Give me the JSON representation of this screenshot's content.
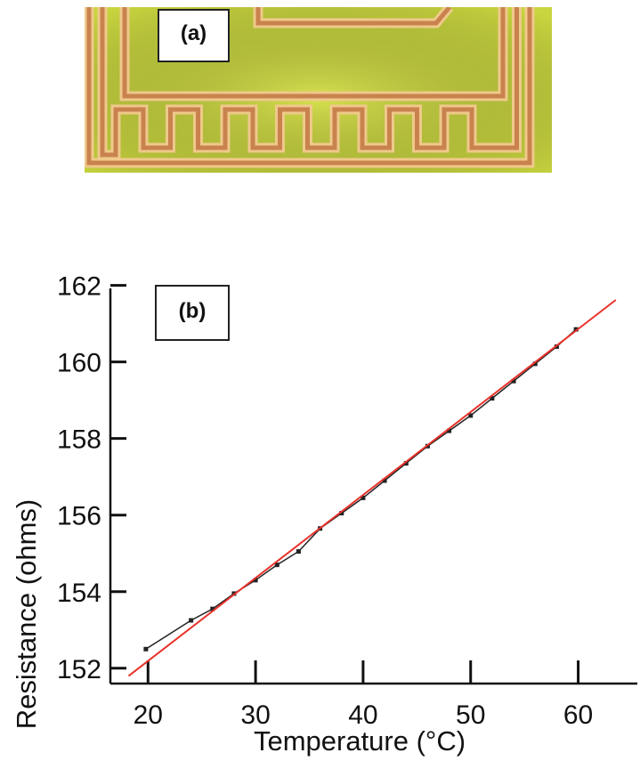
{
  "panel_a": {
    "label": "(a)",
    "photo": {
      "background_color": "#c9d63f",
      "trace_color": "#c9824e",
      "trace_highlight_color": "#efc98a"
    }
  },
  "panel_b": {
    "label": "(b)"
  },
  "chart_data": {
    "type": "line",
    "title": "",
    "xlabel": "Temperature (°C)",
    "ylabel": "Resistance (ohms)",
    "xlim": [
      16.5,
      65.5
    ],
    "ylim": [
      151.6,
      162.2
    ],
    "x_ticks": [
      20,
      30,
      40,
      50,
      60
    ],
    "y_ticks": [
      152,
      154,
      156,
      158,
      160,
      162
    ],
    "grid": false,
    "series": [
      {
        "role": "measured",
        "color": "#222222",
        "markers": true,
        "x": [
          19.8,
          24.0,
          26.0,
          28.0,
          30.0,
          32.0,
          34.0,
          36.0,
          38.0,
          40.0,
          42.0,
          44.0,
          46.0,
          48.0,
          50.0,
          52.0,
          54.0,
          56.0,
          58.0,
          59.8
        ],
        "y": [
          152.5,
          153.25,
          153.55,
          153.95,
          154.3,
          154.7,
          155.05,
          155.65,
          156.05,
          156.45,
          156.9,
          157.35,
          157.8,
          158.2,
          158.6,
          159.05,
          159.5,
          159.95,
          160.4,
          160.85
        ]
      },
      {
        "role": "linear fit",
        "color": "#e8322a",
        "markers": false,
        "x": [
          18.2,
          63.5
        ],
        "y": [
          151.8,
          161.62
        ]
      }
    ]
  }
}
